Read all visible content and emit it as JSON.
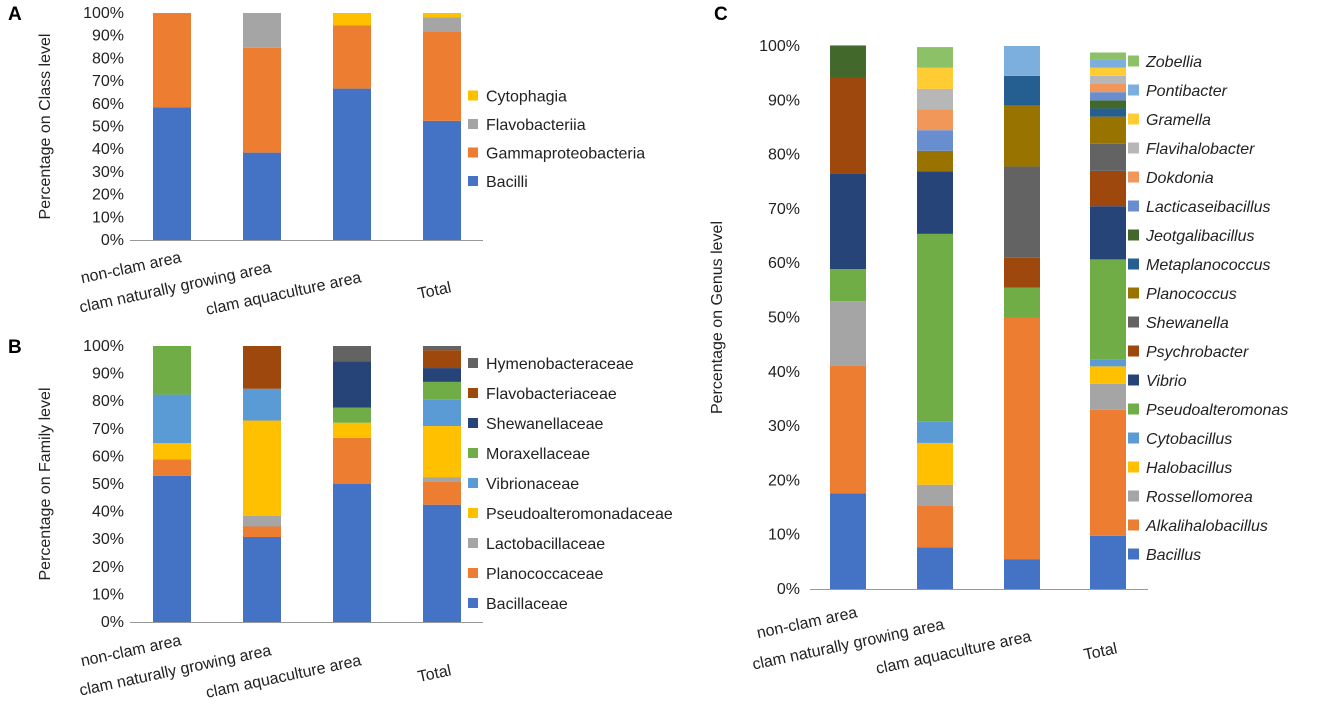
{
  "chart_data": [
    {
      "panel": "A",
      "type": "bar",
      "stacked": true,
      "ylabel": "Percentage on Class level",
      "ylim": [
        0,
        100
      ],
      "ytick_labels": [
        "0%",
        "10%",
        "20%",
        "30%",
        "40%",
        "50%",
        "60%",
        "70%",
        "80%",
        "90%",
        "100%"
      ],
      "categories": [
        "non-clam area",
        "clam naturally growing area",
        "clam aquaculture area",
        "Total"
      ],
      "italic_legend": false,
      "series": [
        {
          "name": "Bacilli",
          "color": "#4472C4",
          "values": [
            58.5,
            38.5,
            66.7,
            52.5
          ]
        },
        {
          "name": "Gammaproteobacteria",
          "color": "#ED7D31",
          "values": [
            41.5,
            46.2,
            27.8,
            39.5
          ]
        },
        {
          "name": "Flavobacteriia",
          "color": "#A5A5A5",
          "values": [
            0,
            15.3,
            0,
            6.0
          ]
        },
        {
          "name": "Cytophagia",
          "color": "#FFC000",
          "values": [
            0,
            0,
            5.5,
            2.0
          ]
        }
      ]
    },
    {
      "panel": "B",
      "type": "bar",
      "stacked": true,
      "ylabel": "Percentage on Family level",
      "ylim": [
        0,
        100
      ],
      "ytick_labels": [
        "0%",
        "10%",
        "20%",
        "30%",
        "40%",
        "50%",
        "60%",
        "70%",
        "80%",
        "90%",
        "100%"
      ],
      "categories": [
        "non-clam area",
        "clam naturally growing area",
        "clam aquaculture area",
        "Total"
      ],
      "italic_legend": false,
      "series": [
        {
          "name": "Bacillaceae",
          "color": "#4472C4",
          "values": [
            53.0,
            30.8,
            50.0,
            42.5
          ]
        },
        {
          "name": "Planococcaceae",
          "color": "#ED7D31",
          "values": [
            5.9,
            3.8,
            16.7,
            8.5
          ]
        },
        {
          "name": "Lactobacillaceae",
          "color": "#A5A5A5",
          "values": [
            0,
            3.8,
            0,
            1.5
          ]
        },
        {
          "name": "Pseudoalteromonadaceae",
          "color": "#FFC000",
          "values": [
            5.9,
            34.6,
            5.5,
            18.5
          ]
        },
        {
          "name": "Vibrionaceae",
          "color": "#5B9BD5",
          "values": [
            17.6,
            11.5,
            0,
            9.5
          ]
        },
        {
          "name": "Moraxellaceae",
          "color": "#70AD47",
          "values": [
            17.6,
            0,
            5.5,
            6.5
          ]
        },
        {
          "name": "Shewanellaceae",
          "color": "#264478",
          "values": [
            0,
            0,
            16.8,
            5.0
          ]
        },
        {
          "name": "Flavobacteriaceae",
          "color": "#9E480E",
          "values": [
            0,
            15.5,
            0,
            6.5
          ]
        },
        {
          "name": "Hymenobacteraceae",
          "color": "#636363",
          "values": [
            0,
            0,
            5.5,
            1.5
          ]
        }
      ]
    },
    {
      "panel": "C",
      "type": "bar",
      "stacked": true,
      "ylabel": "Percentage on Genus level",
      "ylim": [
        0,
        100
      ],
      "ytick_labels": [
        "0%",
        "10%",
        "20%",
        "30%",
        "40%",
        "50%",
        "60%",
        "70%",
        "80%",
        "90%",
        "100%"
      ],
      "categories": [
        "non-clam area",
        "clam naturally growing area",
        "clam aquaculture area",
        "Total"
      ],
      "italic_legend": true,
      "series": [
        {
          "name": "Bacillus",
          "color": "#4472C4",
          "values": [
            17.6,
            7.7,
            5.5,
            9.8
          ]
        },
        {
          "name": "Alkalihalobacillus",
          "color": "#ED7D31",
          "values": [
            23.6,
            7.7,
            44.5,
            23.2
          ]
        },
        {
          "name": "Rossellomorea",
          "color": "#A5A5A5",
          "values": [
            11.8,
            3.8,
            0,
            4.8
          ]
        },
        {
          "name": "Halobacillus",
          "color": "#FFC000",
          "values": [
            0,
            7.7,
            0,
            3.2
          ]
        },
        {
          "name": "Cytobacillus",
          "color": "#5B9BD5",
          "values": [
            0,
            3.9,
            0,
            1.2
          ]
        },
        {
          "name": "Pseudoalteromonas",
          "color": "#70AD47",
          "values": [
            5.9,
            34.6,
            5.5,
            18.5
          ]
        },
        {
          "name": "Vibrio",
          "color": "#264478",
          "values": [
            17.6,
            11.5,
            0,
            9.8
          ]
        },
        {
          "name": "Psychrobacter",
          "color": "#9E480E",
          "values": [
            17.7,
            0,
            5.5,
            6.5
          ]
        },
        {
          "name": "Shewanella",
          "color": "#636363",
          "values": [
            0,
            0,
            16.8,
            5.0
          ]
        },
        {
          "name": "Planococcus",
          "color": "#997300",
          "values": [
            0,
            3.8,
            11.2,
            5.0
          ]
        },
        {
          "name": "Metaplanococcus",
          "color": "#255E91",
          "values": [
            0,
            0,
            5.5,
            1.5
          ]
        },
        {
          "name": "Jeotgalibacillus",
          "color": "#43682B",
          "values": [
            5.9,
            0,
            0,
            1.5
          ]
        },
        {
          "name": "Lacticaseibacillus",
          "color": "#698ED0",
          "values": [
            0,
            3.8,
            0,
            1.5
          ]
        },
        {
          "name": "Dokdonia",
          "color": "#F1975A",
          "values": [
            0,
            3.8,
            0,
            1.5
          ]
        },
        {
          "name": "Flavihalobacter",
          "color": "#B7B7B7",
          "values": [
            0,
            3.8,
            0,
            1.5
          ]
        },
        {
          "name": "Gramella",
          "color": "#FFCD33",
          "values": [
            0,
            3.9,
            0,
            1.5
          ]
        },
        {
          "name": "Pontibacter",
          "color": "#7CAFDD",
          "values": [
            0,
            0,
            5.5,
            1.5
          ]
        },
        {
          "name": "Zobellia",
          "color": "#8CC168",
          "values": [
            0,
            3.8,
            0,
            1.3
          ]
        }
      ]
    }
  ]
}
